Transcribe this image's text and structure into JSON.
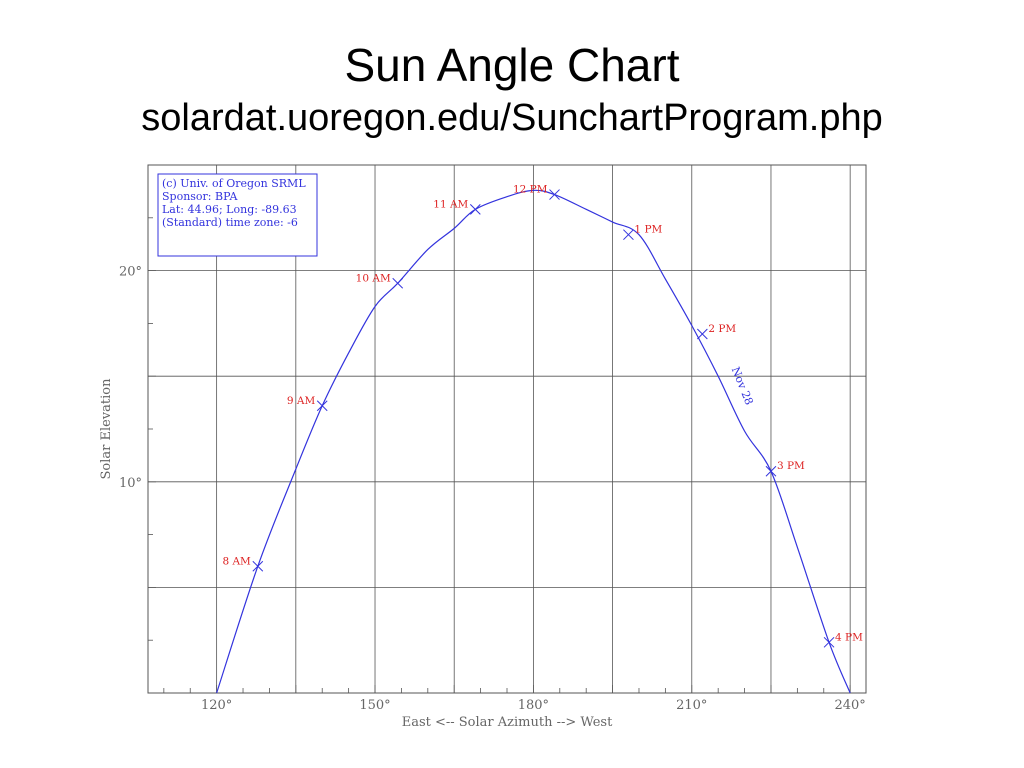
{
  "slide": {
    "title": "Sun Angle Chart",
    "subtitle": "solardat.uoregon.edu/SunchartProgram.php"
  },
  "chart_data": {
    "type": "line",
    "xlabel": "East <-- Solar Azimuth --> West",
    "ylabel": "Solar Elevation",
    "xlim": [
      107,
      243
    ],
    "ylim": [
      0,
      25
    ],
    "x_ticks": [
      {
        "value": 120,
        "label": "120°"
      },
      {
        "value": 150,
        "label": "150°"
      },
      {
        "value": 180,
        "label": "180°"
      },
      {
        "value": 210,
        "label": "210°"
      },
      {
        "value": 240,
        "label": "240°"
      }
    ],
    "y_ticks": [
      {
        "value": 10,
        "label": "10°"
      },
      {
        "value": 20,
        "label": "20°"
      }
    ],
    "grid": true,
    "legend_box": {
      "placement": "top-left",
      "lines": [
        "(c) Univ. of Oregon SRML",
        "Sponsor: BPA",
        "Lat: 44.96; Long: -89.63",
        "(Standard) time zone: -6"
      ]
    },
    "series": [
      {
        "name": "Nov 28",
        "color": "#3333dd",
        "points": [
          {
            "x": 120.0,
            "y": 0.0
          },
          {
            "x": 127.8,
            "y": 6.0
          },
          {
            "x": 135.0,
            "y": 10.6
          },
          {
            "x": 140.0,
            "y": 13.6
          },
          {
            "x": 145.0,
            "y": 16.1
          },
          {
            "x": 150.0,
            "y": 18.3
          },
          {
            "x": 154.3,
            "y": 19.4
          },
          {
            "x": 160.0,
            "y": 21.0
          },
          {
            "x": 165.0,
            "y": 22.0
          },
          {
            "x": 169.0,
            "y": 22.9
          },
          {
            "x": 175.0,
            "y": 23.5
          },
          {
            "x": 180.0,
            "y": 23.8
          },
          {
            "x": 184.0,
            "y": 23.6
          },
          {
            "x": 190.0,
            "y": 22.9
          },
          {
            "x": 195.0,
            "y": 22.3
          },
          {
            "x": 200.0,
            "y": 21.7
          },
          {
            "x": 205.0,
            "y": 19.6
          },
          {
            "x": 210.0,
            "y": 17.4
          },
          {
            "x": 215.0,
            "y": 15.0
          },
          {
            "x": 220.0,
            "y": 12.4
          },
          {
            "x": 225.0,
            "y": 10.5
          },
          {
            "x": 230.0,
            "y": 6.9
          },
          {
            "x": 236.0,
            "y": 2.4
          },
          {
            "x": 240.0,
            "y": 0.0
          }
        ]
      }
    ],
    "hour_markers": [
      {
        "label": "8 AM",
        "x": 127.8,
        "y": 6.0,
        "side": "left"
      },
      {
        "label": "9 AM",
        "x": 140.0,
        "y": 13.6,
        "side": "left"
      },
      {
        "label": "10 AM",
        "x": 154.3,
        "y": 19.4,
        "side": "left"
      },
      {
        "label": "11 AM",
        "x": 169.0,
        "y": 22.9,
        "side": "left"
      },
      {
        "label": "12 PM",
        "x": 184.0,
        "y": 23.6,
        "side": "left"
      },
      {
        "label": "1 PM",
        "x": 198.0,
        "y": 21.7,
        "side": "right"
      },
      {
        "label": "2 PM",
        "x": 212.0,
        "y": 17.0,
        "side": "right"
      },
      {
        "label": "3 PM",
        "x": 225.0,
        "y": 10.5,
        "side": "right"
      },
      {
        "label": "4 PM",
        "x": 236.0,
        "y": 2.4,
        "side": "right"
      }
    ],
    "curve_label": {
      "text": "Nov 28",
      "x": 216.0,
      "y": 14.5
    },
    "colors": {
      "grid": "#555555",
      "curve": "#3333dd",
      "markers": "#dd2222",
      "axis_text": "#666666",
      "legend_text": "#3333dd"
    }
  }
}
